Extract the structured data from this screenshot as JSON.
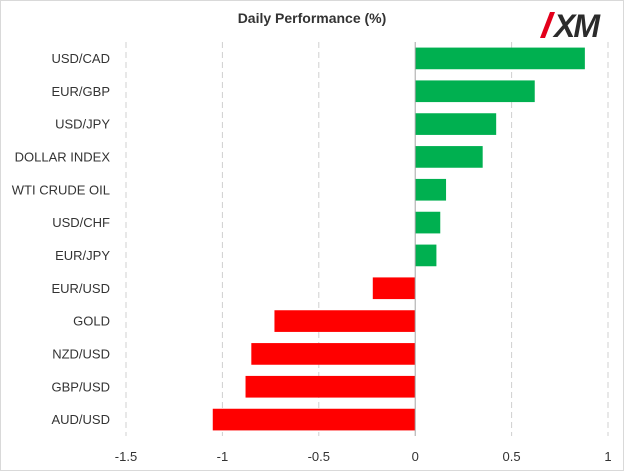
{
  "colors": {
    "positive": "#00b050",
    "negative": "#ff0000",
    "grid": "#d0d0d0",
    "axis": "#a6a6a6",
    "text": "#333333",
    "logo_red": "#e3001b",
    "logo_dark": "#2b2b2b"
  },
  "logo": {
    "text": "XM"
  },
  "chart_data": {
    "type": "bar",
    "orientation": "horizontal",
    "title": "Daily Performance  (%)",
    "xlabel": "",
    "ylabel": "",
    "categories": [
      "USD/CAD",
      "EUR/GBP",
      "USD/JPY",
      "DOLLAR INDEX",
      "WTI CRUDE OIL",
      "USD/CHF",
      "EUR/JPY",
      "EUR/USD",
      "GOLD",
      "NZD/USD",
      "GBP/USD",
      "AUD/USD"
    ],
    "values": [
      0.88,
      0.62,
      0.42,
      0.35,
      0.16,
      0.13,
      0.11,
      -0.22,
      -0.73,
      -0.85,
      -0.88,
      -1.05
    ],
    "xlim": [
      -1.5,
      1
    ],
    "xticks": [
      -1.5,
      -1,
      -0.5,
      0,
      0.5,
      1
    ],
    "xtick_labels": [
      "-1.5",
      "-1",
      "-0.5",
      "0",
      "0.5",
      "1"
    ],
    "grid": "vertical dashed",
    "legend": "none"
  }
}
